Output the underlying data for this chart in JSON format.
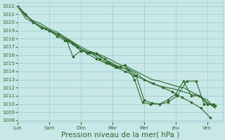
{
  "background_color": "#c8e8e8",
  "grid_color": "#a0c8c8",
  "line_color": "#2d6a2d",
  "xlabel": "Pression niveau de la mer( hPa )",
  "xlabel_fontsize": 7.5,
  "tick_color": "#2d6a2d",
  "ylim": [
    1007.8,
    1022.5
  ],
  "yticks": [
    1008,
    1009,
    1010,
    1011,
    1012,
    1013,
    1014,
    1015,
    1016,
    1017,
    1018,
    1019,
    1020,
    1021,
    1022
  ],
  "xtick_labels": [
    "Lun",
    "Sam",
    "Dim",
    "Mar",
    "Mer",
    "Jeu",
    "Ven"
  ],
  "xlim": [
    0,
    6.5
  ],
  "series": [
    {
      "x": [
        0.0,
        0.25,
        0.5,
        0.75,
        1.0,
        1.25,
        1.5,
        1.75,
        2.0,
        2.25,
        2.5,
        2.75,
        3.0,
        3.25,
        3.5,
        3.75,
        4.0,
        4.25,
        4.5,
        4.75,
        5.0,
        5.25,
        5.5,
        5.75,
        6.0,
        6.25
      ],
      "y": [
        1022.0,
        1021.0,
        1020.0,
        1019.3,
        1019.0,
        1018.3,
        1017.8,
        1017.3,
        1016.5,
        1016.3,
        1016.2,
        1015.5,
        1014.8,
        1014.5,
        1014.2,
        1013.5,
        1010.5,
        1010.1,
        1010.0,
        1010.5,
        1011.2,
        1012.8,
        1011.0,
        1011.0,
        1010.0,
        1009.8
      ],
      "markers": true
    },
    {
      "x": [
        0.0,
        0.25,
        0.5,
        0.75,
        1.0,
        1.25,
        1.5,
        1.75,
        2.0,
        2.25,
        2.5,
        2.75,
        3.0,
        3.25,
        3.5,
        3.75,
        4.0,
        4.25,
        4.5,
        4.75,
        5.0,
        5.25,
        5.5,
        5.75,
        6.0,
        6.25
      ],
      "y": [
        1022.0,
        1020.5,
        1020.0,
        1019.5,
        1019.0,
        1018.5,
        1018.0,
        1017.5,
        1016.8,
        1016.3,
        1016.0,
        1015.5,
        1015.0,
        1014.5,
        1014.3,
        1013.8,
        1013.0,
        1012.5,
        1012.2,
        1012.0,
        1011.8,
        1011.5,
        1011.2,
        1011.0,
        1010.5,
        1009.5
      ],
      "markers": false
    },
    {
      "x": [
        0.0,
        0.25,
        0.5,
        0.75,
        1.0,
        1.25,
        1.5,
        1.75,
        2.0,
        2.25,
        2.5,
        2.75,
        3.0,
        3.25,
        3.5,
        3.75,
        4.0,
        4.25,
        4.5,
        4.75,
        5.0,
        5.25,
        5.5,
        5.75,
        6.0,
        6.25
      ],
      "y": [
        1022.0,
        1020.8,
        1020.2,
        1019.8,
        1019.2,
        1018.8,
        1018.2,
        1017.6,
        1017.0,
        1016.5,
        1016.2,
        1015.8,
        1015.3,
        1014.8,
        1014.5,
        1014.0,
        1013.5,
        1013.0,
        1012.8,
        1012.5,
        1012.2,
        1012.0,
        1011.5,
        1011.0,
        1010.2,
        1009.5
      ],
      "markers": false
    },
    {
      "x": [
        0.0,
        0.5,
        1.0,
        1.3,
        1.55,
        1.75,
        2.0,
        2.3,
        2.6,
        2.9,
        3.15,
        3.4,
        3.7,
        3.95,
        4.2,
        4.5,
        4.75,
        5.05,
        5.35,
        5.65,
        5.9,
        6.2
      ],
      "y": [
        1022.0,
        1020.0,
        1019.0,
        1018.5,
        1017.8,
        1015.8,
        1016.5,
        1016.3,
        1015.5,
        1015.0,
        1014.5,
        1014.8,
        1013.0,
        1010.2,
        1010.0,
        1010.0,
        1010.2,
        1011.0,
        1012.8,
        1012.8,
        1010.0,
        1010.0
      ],
      "markers": true
    },
    {
      "x": [
        0.0,
        0.5,
        0.9,
        1.3,
        1.6,
        1.9,
        2.2,
        2.5,
        2.8,
        3.1,
        3.4,
        3.7,
        4.0,
        4.3,
        4.6,
        4.9,
        5.2,
        5.5,
        5.8,
        6.1
      ],
      "y": [
        1022.0,
        1020.0,
        1019.2,
        1018.5,
        1017.8,
        1017.0,
        1016.2,
        1015.5,
        1015.0,
        1014.5,
        1014.0,
        1013.5,
        1013.0,
        1012.5,
        1012.0,
        1011.5,
        1010.8,
        1010.2,
        1009.5,
        1008.3
      ],
      "markers": true
    }
  ]
}
